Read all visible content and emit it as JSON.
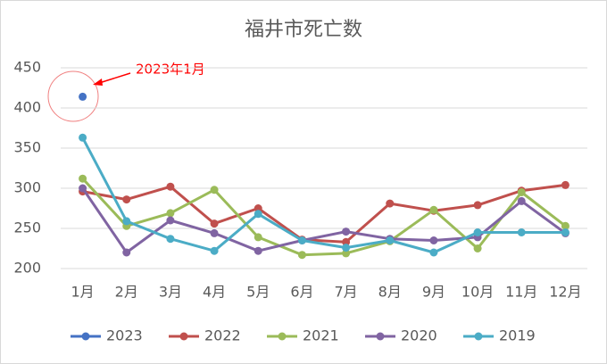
{
  "chart_data": {
    "type": "line",
    "title": "福井市死亡数",
    "categories": [
      "1月",
      "2月",
      "3月",
      "4月",
      "5月",
      "6月",
      "7月",
      "8月",
      "9月",
      "10月",
      "11月",
      "12月"
    ],
    "series": [
      {
        "name": "2023",
        "color": "#4472c4",
        "values": [
          414,
          null,
          null,
          null,
          null,
          null,
          null,
          null,
          null,
          null,
          null,
          null
        ]
      },
      {
        "name": "2022",
        "color": "#c0504d",
        "values": [
          296,
          286,
          302,
          256,
          275,
          236,
          233,
          281,
          272,
          279,
          297,
          304
        ]
      },
      {
        "name": "2021",
        "color": "#9bbb59",
        "values": [
          312,
          253,
          269,
          298,
          239,
          217,
          219,
          234,
          273,
          225,
          295,
          253
        ]
      },
      {
        "name": "2020",
        "color": "#8064a2",
        "values": [
          300,
          220,
          260,
          244,
          222,
          235,
          246,
          237,
          235,
          239,
          284,
          244
        ]
      },
      {
        "name": "2019",
        "color": "#4bacc6",
        "values": [
          363,
          259,
          237,
          222,
          268,
          235,
          226,
          235,
          220,
          245,
          245,
          245
        ]
      }
    ],
    "ylim": [
      200,
      450
    ],
    "yticks": [
      200,
      250,
      300,
      350,
      400,
      450
    ],
    "grid": true,
    "legend": "bottom",
    "annotation": "2023年1月"
  }
}
